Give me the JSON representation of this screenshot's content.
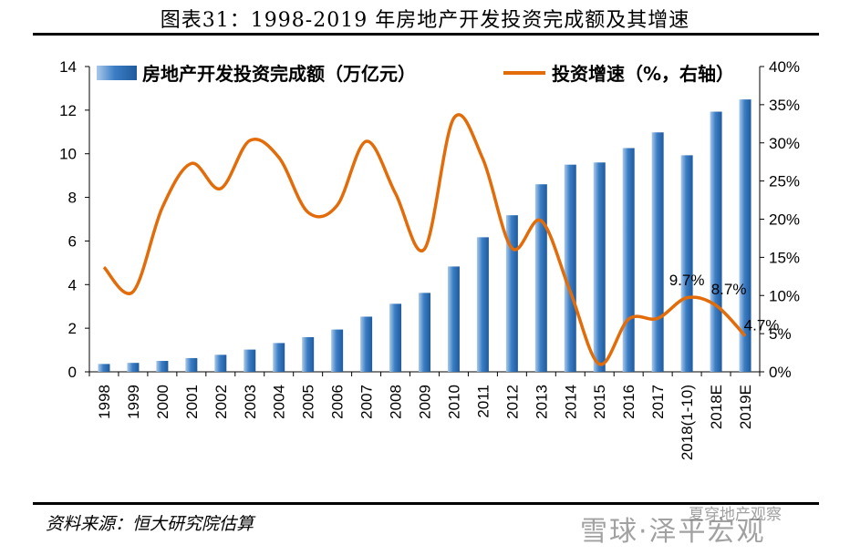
{
  "header": {
    "title": "图表31：1998-2019 年房地产开发投资完成额及其增速"
  },
  "footer": {
    "source": "资料来源：恒大研究院估算",
    "watermark": "雪球·泽平宏观",
    "watermark_small": "夏穿地产观察"
  },
  "chart_data": {
    "type": "bar",
    "categories": [
      "1998",
      "1999",
      "2000",
      "2001",
      "2002",
      "2003",
      "2004",
      "2005",
      "2006",
      "2007",
      "2008",
      "2009",
      "2010",
      "2011",
      "2012",
      "2013",
      "2014",
      "2015",
      "2016",
      "2017",
      "2018(1-10)",
      "2018E",
      "2019E"
    ],
    "series": [
      {
        "name": "房地产开发投资完成额（万亿元）",
        "type": "bar",
        "axis": "left",
        "color": "#3b7dc4",
        "values": [
          0.36,
          0.41,
          0.5,
          0.63,
          0.78,
          1.02,
          1.32,
          1.59,
          1.94,
          2.53,
          3.12,
          3.62,
          4.83,
          6.17,
          7.18,
          8.6,
          9.5,
          9.6,
          10.26,
          10.98,
          9.93,
          11.93,
          12.49
        ]
      },
      {
        "name": "投资增速（%，右轴）",
        "type": "line",
        "axis": "right",
        "color": "#e36c0a",
        "values": [
          13.7,
          10.5,
          21.5,
          27.3,
          24.0,
          30.3,
          28.1,
          20.9,
          21.8,
          30.2,
          23.4,
          16.1,
          33.2,
          27.9,
          16.2,
          19.8,
          10.5,
          1.0,
          6.9,
          7.0,
          9.7,
          8.7,
          4.7
        ]
      }
    ],
    "annotations": [
      "9.7%",
      "8.7%",
      "4.7%"
    ],
    "ylim_left": [
      0,
      14
    ],
    "yticks_left": [
      "0",
      "2",
      "4",
      "6",
      "8",
      "10",
      "12",
      "14"
    ],
    "ylim_right": [
      0,
      40
    ],
    "yticks_right": [
      "0%",
      "5%",
      "10%",
      "15%",
      "20%",
      "25%",
      "30%",
      "35%",
      "40%"
    ],
    "legend_position": "top",
    "grid": false
  }
}
